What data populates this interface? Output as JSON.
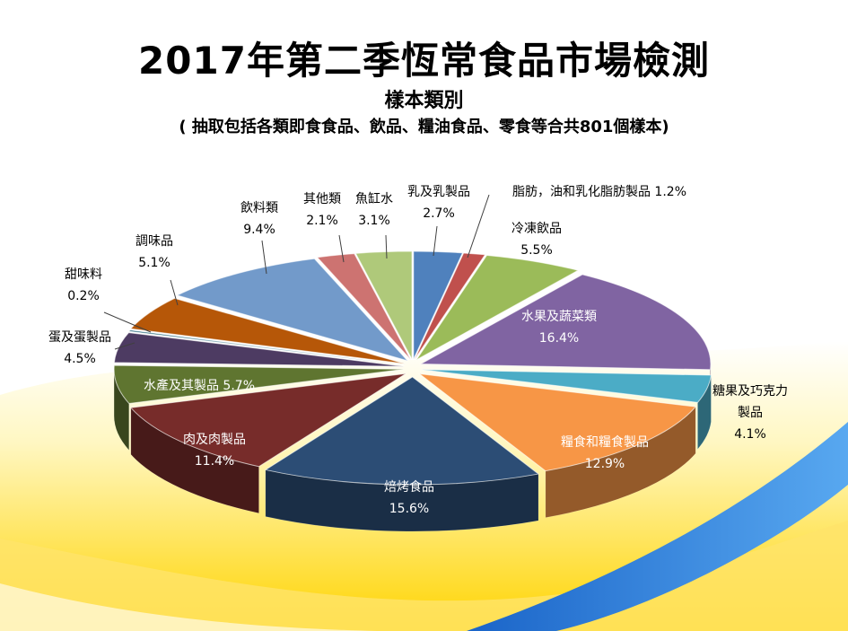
{
  "title": "2017年第二季恆常食品市場檢測",
  "subtitle": "樣本類別",
  "note": "( 抽取包括各類即食食品、飲品、糧油食品、零食等合共801個樣本)",
  "chart_data": {
    "type": "pie",
    "title": "2017年第二季恆常食品市場檢測",
    "subtitle": "樣本類別",
    "legend": "none",
    "slices": [
      {
        "label": "乳及乳製品",
        "value": 2.7,
        "value_label": "2.7%",
        "color": "#4f81bd"
      },
      {
        "label": "脂肪，油和乳化脂肪製品",
        "value": 1.2,
        "value_label": "1.2%",
        "color": "#c0504d"
      },
      {
        "label": "冷凍飲品",
        "value": 5.5,
        "value_label": "5.5%",
        "color": "#9bbb59"
      },
      {
        "label": "水果及蔬菜類",
        "value": 16.4,
        "value_label": "16.4%",
        "color": "#8064a2"
      },
      {
        "label": "糖果及巧克力製品",
        "label_lines": [
          "糖果及巧克力",
          "製品"
        ],
        "value": 4.1,
        "value_label": "4.1%",
        "color": "#4bacc6"
      },
      {
        "label": "糧食和糧食製品",
        "value": 12.9,
        "value_label": "12.9%",
        "color": "#f79646"
      },
      {
        "label": "焙烤食品",
        "value": 15.6,
        "value_label": "15.6%",
        "color": "#2c4d75"
      },
      {
        "label": "肉及肉製品",
        "value": 11.4,
        "value_label": "11.4%",
        "color": "#772c2a"
      },
      {
        "label": "水產及其製品",
        "value": 5.7,
        "value_label": "5.7%",
        "color": "#5f7530"
      },
      {
        "label": "蛋及蛋製品",
        "value": 4.5,
        "value_label": "4.5%",
        "color": "#4d3b62"
      },
      {
        "label": "甜味料",
        "value": 0.2,
        "value_label": "0.2%",
        "color": "#276a7c"
      },
      {
        "label": "調味品",
        "value": 5.1,
        "value_label": "5.1%",
        "color": "#b65708"
      },
      {
        "label": "飲料類",
        "value": 9.4,
        "value_label": "9.4%",
        "color": "#729aca"
      },
      {
        "label": "其他類",
        "value": 2.1,
        "value_label": "2.1%",
        "color": "#cd7371"
      },
      {
        "label": "魚缸水",
        "value": 3.1,
        "value_label": "3.1%",
        "color": "#afc97a"
      }
    ]
  }
}
